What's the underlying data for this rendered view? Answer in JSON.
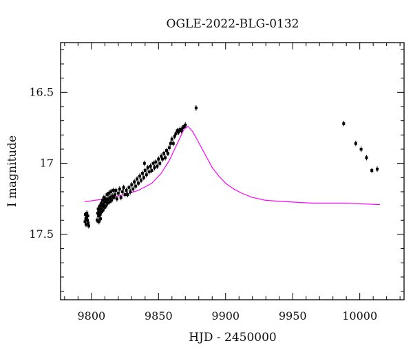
{
  "chart_data": {
    "type": "scatter",
    "title": "OGLE-2022-BLG-0132",
    "xlabel": "HJD - 2450000",
    "ylabel": "I magnitude",
    "xlim": [
      9777,
      10033
    ],
    "ylim": [
      17.96,
      16.15
    ],
    "y_inverted": true,
    "x_major_ticks": [
      9800,
      9850,
      9900,
      9950,
      10000
    ],
    "x_tick_labels": [
      "9800",
      "9850",
      "9900",
      "9950",
      "10000"
    ],
    "x_minor_step": 10,
    "y_major_ticks": [
      16.5,
      17,
      17.5
    ],
    "y_tick_labels": [
      "16.5",
      "17",
      "17.5"
    ],
    "y_minor_step": 0.1,
    "grid": false,
    "colors": {
      "data": "#000000",
      "model": "#ff00ff",
      "axes": "#000000"
    },
    "series": [
      {
        "type": "scatter",
        "markers": "filled-square-with-errorbars",
        "points": [
          [
            9795.2,
            17.41
          ],
          [
            9795.5,
            17.36
          ],
          [
            9795.8,
            17.39
          ],
          [
            9796.0,
            17.43
          ],
          [
            9796.3,
            17.38
          ],
          [
            9796.6,
            17.35
          ],
          [
            9797.0,
            17.4
          ],
          [
            9797.3,
            17.37
          ],
          [
            9797.6,
            17.42
          ],
          [
            9798.0,
            17.44
          ],
          [
            9804.2,
            17.4
          ],
          [
            9804.6,
            17.35
          ],
          [
            9805.0,
            17.32
          ],
          [
            9805.3,
            17.37
          ],
          [
            9805.6,
            17.41
          ],
          [
            9805.9,
            17.34
          ],
          [
            9806.2,
            17.3
          ],
          [
            9806.5,
            17.36
          ],
          [
            9806.8,
            17.39
          ],
          [
            9807.1,
            17.32
          ],
          [
            9807.4,
            17.28
          ],
          [
            9807.7,
            17.34
          ],
          [
            9808.0,
            17.3
          ],
          [
            9808.3,
            17.26
          ],
          [
            9808.6,
            17.33
          ],
          [
            9809.0,
            17.29
          ],
          [
            9809.3,
            17.24
          ],
          [
            9809.7,
            17.31
          ],
          [
            9810.0,
            17.27
          ],
          [
            9810.4,
            17.25
          ],
          [
            9810.8,
            17.3
          ],
          [
            9811.2,
            17.26
          ],
          [
            9811.6,
            17.22
          ],
          [
            9812.0,
            17.28
          ],
          [
            9812.5,
            17.25
          ],
          [
            9813.0,
            17.21
          ],
          [
            9813.5,
            17.27
          ],
          [
            9814.0,
            17.24
          ],
          [
            9814.5,
            17.2
          ],
          [
            9815.0,
            17.26
          ],
          [
            9815.6,
            17.23
          ],
          [
            9816.2,
            17.19
          ],
          [
            9816.8,
            17.24
          ],
          [
            9817.5,
            17.22
          ],
          [
            9818.2,
            17.19
          ],
          [
            9819.0,
            17.25
          ],
          [
            9820.0,
            17.21
          ],
          [
            9821.0,
            17.18
          ],
          [
            9822.0,
            17.24
          ],
          [
            9823.0,
            17.2
          ],
          [
            9824.0,
            17.17
          ],
          [
            9825.0,
            17.22
          ],
          [
            9826.0,
            17.19
          ],
          [
            9827.0,
            17.22
          ],
          [
            9828.0,
            17.17
          ],
          [
            9829.0,
            17.2
          ],
          [
            9830.0,
            17.15
          ],
          [
            9831.0,
            17.18
          ],
          [
            9832.0,
            17.13
          ],
          [
            9833.0,
            17.16
          ],
          [
            9834.0,
            17.11
          ],
          [
            9835.0,
            17.14
          ],
          [
            9836.0,
            17.09
          ],
          [
            9837.0,
            17.12
          ],
          [
            9838.0,
            17.07
          ],
          [
            9839.0,
            17.1
          ],
          [
            9839.5,
            17.0
          ],
          [
            9840.0,
            17.05
          ],
          [
            9841.0,
            17.08
          ],
          [
            9842.0,
            17.03
          ],
          [
            9843.0,
            17.06
          ],
          [
            9844.0,
            17.02
          ],
          [
            9845.0,
            17.05
          ],
          [
            9846.0,
            17.0
          ],
          [
            9847.0,
            17.03
          ],
          [
            9848.0,
            16.99
          ],
          [
            9849.0,
            17.02
          ],
          [
            9850.0,
            16.97
          ],
          [
            9851.0,
            17.0
          ],
          [
            9852.0,
            16.95
          ],
          [
            9853.0,
            16.97
          ],
          [
            9854.0,
            16.93
          ],
          [
            9855.0,
            16.96
          ],
          [
            9856.0,
            16.91
          ],
          [
            9857.0,
            16.93
          ],
          [
            9858.0,
            16.89
          ],
          [
            9859.0,
            16.86
          ],
          [
            9860.0,
            16.83
          ],
          [
            9861.0,
            16.86
          ],
          [
            9862.0,
            16.81
          ],
          [
            9863.0,
            16.79
          ],
          [
            9864.0,
            16.77
          ],
          [
            9865.0,
            16.78
          ],
          [
            9866.0,
            16.76
          ],
          [
            9867.0,
            16.77
          ],
          [
            9868.0,
            16.75
          ],
          [
            9869.0,
            16.74
          ],
          [
            9870.0,
            16.73
          ],
          [
            9878.0,
            16.61
          ],
          [
            9988.0,
            16.72
          ],
          [
            9997.0,
            16.86
          ],
          [
            10001.0,
            16.9
          ],
          [
            10005.0,
            16.96
          ],
          [
            10009.0,
            17.05
          ],
          [
            10013.0,
            17.04
          ]
        ]
      },
      {
        "type": "line",
        "model": true,
        "x": [
          9795,
          9810,
          9825,
          9835,
          9845,
          9852,
          9858,
          9862,
          9866,
          9869,
          9872,
          9875,
          9878,
          9882,
          9886,
          9890,
          9895,
          9900,
          9906,
          9912,
          9920,
          9930,
          9945,
          9965,
          9990,
          10015
        ],
        "y": [
          17.27,
          17.25,
          17.22,
          17.19,
          17.14,
          17.07,
          16.98,
          16.9,
          16.82,
          16.76,
          16.74,
          16.77,
          16.82,
          16.89,
          16.96,
          17.03,
          17.09,
          17.14,
          17.18,
          17.21,
          17.24,
          17.26,
          17.27,
          17.28,
          17.28,
          17.29
        ]
      }
    ]
  }
}
